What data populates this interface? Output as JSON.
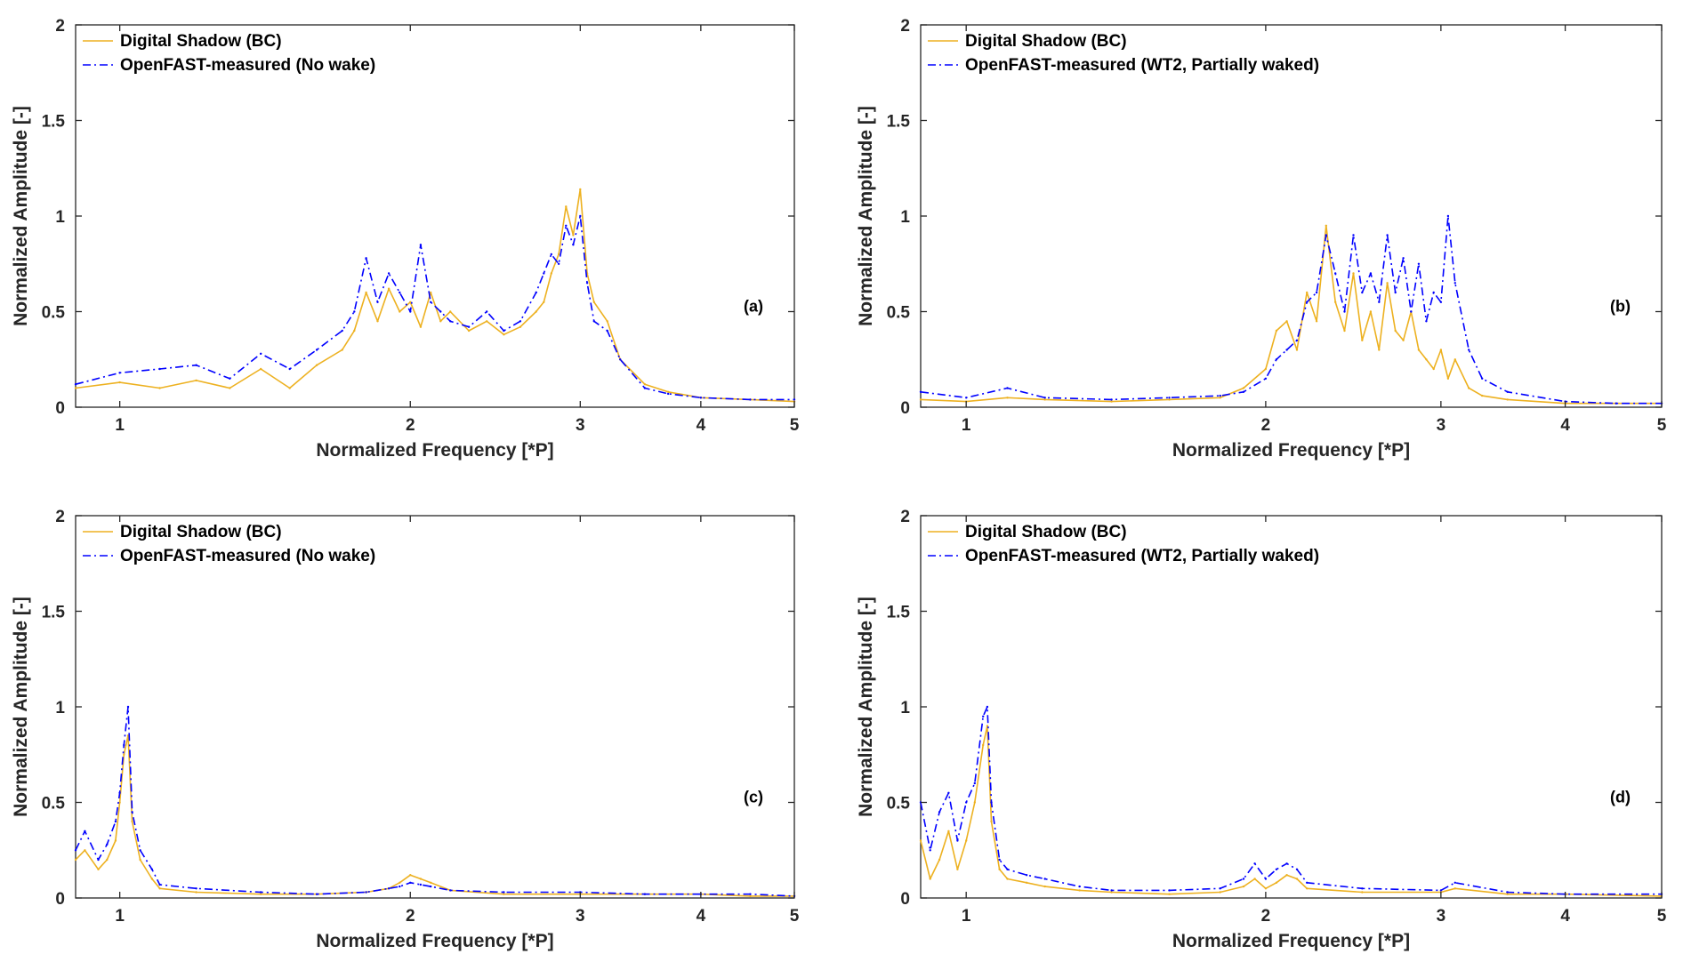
{
  "figure": {
    "colors": {
      "shadow": "#EDB120",
      "measured": "#0000FF",
      "axis": "#262626",
      "background": "#FFFFFF"
    }
  },
  "chart_data": [
    {
      "id": "a",
      "type": "line",
      "panel_label": "(a)",
      "xlabel": "Normalized Frequency [*P]",
      "ylabel": "Normalized Amplitude [-]",
      "xlim": [
        0.9,
        5
      ],
      "ylim": [
        0,
        2
      ],
      "xscale": "log",
      "xticks": [
        1,
        2,
        3,
        4,
        5
      ],
      "xticklabels": [
        "1",
        "2",
        "3",
        "4",
        "5"
      ],
      "yticks": [
        0,
        0.5,
        1,
        1.5,
        2
      ],
      "yticklabels": [
        "0",
        "0.5",
        "1",
        "1.5",
        "2"
      ],
      "legend_location": "top-left",
      "series": [
        {
          "name": "Digital Shadow (BC)",
          "style": "solid",
          "color": "#EDB120",
          "x": [
            0.9,
            1.0,
            1.1,
            1.2,
            1.3,
            1.4,
            1.5,
            1.6,
            1.7,
            1.75,
            1.8,
            1.85,
            1.9,
            1.95,
            2.0,
            2.05,
            2.1,
            2.15,
            2.2,
            2.3,
            2.4,
            2.5,
            2.6,
            2.7,
            2.75,
            2.8,
            2.85,
            2.9,
            2.95,
            3.0,
            3.05,
            3.1,
            3.2,
            3.3,
            3.5,
            3.7,
            4.0,
            4.5,
            5.0
          ],
          "y": [
            0.1,
            0.13,
            0.1,
            0.14,
            0.1,
            0.2,
            0.1,
            0.22,
            0.3,
            0.4,
            0.6,
            0.45,
            0.62,
            0.5,
            0.55,
            0.42,
            0.6,
            0.45,
            0.5,
            0.4,
            0.45,
            0.38,
            0.42,
            0.5,
            0.55,
            0.7,
            0.8,
            1.05,
            0.9,
            1.14,
            0.7,
            0.55,
            0.45,
            0.25,
            0.12,
            0.08,
            0.05,
            0.04,
            0.03
          ]
        },
        {
          "name": "OpenFAST-measured (No wake)",
          "style": "dashdot",
          "color": "#0000FF",
          "x": [
            0.9,
            1.0,
            1.1,
            1.2,
            1.3,
            1.4,
            1.5,
            1.6,
            1.7,
            1.75,
            1.8,
            1.85,
            1.9,
            1.95,
            2.0,
            2.05,
            2.1,
            2.15,
            2.2,
            2.3,
            2.4,
            2.5,
            2.6,
            2.7,
            2.75,
            2.8,
            2.85,
            2.9,
            2.95,
            3.0,
            3.05,
            3.1,
            3.2,
            3.3,
            3.5,
            3.7,
            4.0,
            4.5,
            5.0
          ],
          "y": [
            0.12,
            0.18,
            0.2,
            0.22,
            0.15,
            0.28,
            0.2,
            0.3,
            0.4,
            0.5,
            0.78,
            0.55,
            0.7,
            0.6,
            0.5,
            0.85,
            0.55,
            0.5,
            0.45,
            0.42,
            0.5,
            0.4,
            0.45,
            0.6,
            0.7,
            0.8,
            0.75,
            0.95,
            0.85,
            1.0,
            0.65,
            0.45,
            0.4,
            0.25,
            0.1,
            0.07,
            0.05,
            0.04,
            0.04
          ]
        }
      ]
    },
    {
      "id": "b",
      "type": "line",
      "panel_label": "(b)",
      "xlabel": "Normalized Frequency [*P]",
      "ylabel": "Normalized Amplitude [-]",
      "xlim": [
        0.9,
        5
      ],
      "ylim": [
        0,
        2
      ],
      "xscale": "log",
      "xticks": [
        1,
        2,
        3,
        4,
        5
      ],
      "xticklabels": [
        "1",
        "2",
        "3",
        "4",
        "5"
      ],
      "yticks": [
        0,
        0.5,
        1,
        1.5,
        2
      ],
      "yticklabels": [
        "0",
        "0.5",
        "1",
        "1.5",
        "2"
      ],
      "legend_location": "top-left",
      "series": [
        {
          "name": "Digital Shadow (BC)",
          "style": "solid",
          "color": "#EDB120",
          "x": [
            0.9,
            1.0,
            1.1,
            1.2,
            1.4,
            1.6,
            1.8,
            1.9,
            2.0,
            2.05,
            2.1,
            2.15,
            2.2,
            2.25,
            2.3,
            2.35,
            2.4,
            2.45,
            2.5,
            2.55,
            2.6,
            2.65,
            2.7,
            2.75,
            2.8,
            2.85,
            2.9,
            2.95,
            3.0,
            3.05,
            3.1,
            3.2,
            3.3,
            3.5,
            4.0,
            4.5,
            5.0
          ],
          "y": [
            0.04,
            0.03,
            0.05,
            0.04,
            0.03,
            0.04,
            0.05,
            0.1,
            0.2,
            0.4,
            0.45,
            0.3,
            0.6,
            0.45,
            0.95,
            0.55,
            0.4,
            0.7,
            0.35,
            0.5,
            0.3,
            0.65,
            0.4,
            0.35,
            0.5,
            0.3,
            0.25,
            0.2,
            0.3,
            0.15,
            0.25,
            0.1,
            0.06,
            0.04,
            0.02,
            0.02,
            0.02
          ]
        },
        {
          "name": "OpenFAST-measured (WT2, Partially waked)",
          "style": "dashdot",
          "color": "#0000FF",
          "x": [
            0.9,
            1.0,
            1.1,
            1.2,
            1.4,
            1.6,
            1.8,
            1.9,
            2.0,
            2.05,
            2.1,
            2.15,
            2.2,
            2.25,
            2.3,
            2.35,
            2.4,
            2.45,
            2.5,
            2.55,
            2.6,
            2.65,
            2.7,
            2.75,
            2.8,
            2.85,
            2.9,
            2.95,
            3.0,
            3.05,
            3.1,
            3.2,
            3.3,
            3.5,
            4.0,
            4.5,
            5.0
          ],
          "y": [
            0.08,
            0.05,
            0.1,
            0.05,
            0.04,
            0.05,
            0.06,
            0.08,
            0.15,
            0.25,
            0.3,
            0.35,
            0.55,
            0.6,
            0.9,
            0.7,
            0.5,
            0.9,
            0.6,
            0.7,
            0.55,
            0.9,
            0.6,
            0.78,
            0.5,
            0.75,
            0.45,
            0.6,
            0.55,
            1.0,
            0.65,
            0.3,
            0.15,
            0.08,
            0.03,
            0.02,
            0.02
          ]
        }
      ]
    },
    {
      "id": "c",
      "type": "line",
      "panel_label": "(c)",
      "xlabel": "Normalized Frequency [*P]",
      "ylabel": "Normalized Amplitude [-]",
      "xlim": [
        0.9,
        5
      ],
      "ylim": [
        0,
        2
      ],
      "xscale": "log",
      "xticks": [
        1,
        2,
        3,
        4,
        5
      ],
      "xticklabels": [
        "1",
        "2",
        "3",
        "4",
        "5"
      ],
      "yticks": [
        0,
        0.5,
        1,
        1.5,
        2
      ],
      "yticklabels": [
        "0",
        "0.5",
        "1",
        "1.5",
        "2"
      ],
      "legend_location": "top-left",
      "series": [
        {
          "name": "Digital Shadow (BC)",
          "style": "solid",
          "color": "#EDB120",
          "x": [
            0.9,
            0.92,
            0.95,
            0.97,
            0.99,
            1.0,
            1.01,
            1.02,
            1.03,
            1.05,
            1.08,
            1.1,
            1.2,
            1.4,
            1.6,
            1.8,
            1.9,
            1.95,
            2.0,
            2.05,
            2.1,
            2.2,
            2.5,
            3.0,
            3.5,
            4.0,
            4.5,
            5.0
          ],
          "y": [
            0.2,
            0.25,
            0.15,
            0.2,
            0.3,
            0.5,
            0.75,
            0.85,
            0.4,
            0.2,
            0.1,
            0.05,
            0.03,
            0.02,
            0.02,
            0.03,
            0.05,
            0.08,
            0.12,
            0.1,
            0.08,
            0.04,
            0.02,
            0.02,
            0.02,
            0.02,
            0.01,
            0.01
          ]
        },
        {
          "name": "OpenFAST-measured (No wake)",
          "style": "dashdot",
          "color": "#0000FF",
          "x": [
            0.9,
            0.92,
            0.95,
            0.97,
            0.99,
            1.0,
            1.01,
            1.02,
            1.03,
            1.05,
            1.08,
            1.1,
            1.2,
            1.4,
            1.6,
            1.8,
            1.9,
            1.95,
            2.0,
            2.05,
            2.1,
            2.2,
            2.5,
            3.0,
            3.5,
            4.0,
            4.5,
            5.0
          ],
          "y": [
            0.25,
            0.35,
            0.2,
            0.28,
            0.4,
            0.55,
            0.8,
            1.0,
            0.45,
            0.25,
            0.15,
            0.07,
            0.05,
            0.03,
            0.02,
            0.03,
            0.05,
            0.06,
            0.08,
            0.07,
            0.06,
            0.04,
            0.03,
            0.03,
            0.02,
            0.02,
            0.02,
            0.01
          ]
        }
      ]
    },
    {
      "id": "d",
      "type": "line",
      "panel_label": "(d)",
      "xlabel": "Normalized Frequency [*P]",
      "ylabel": "Normalized Amplitude [-]",
      "xlim": [
        0.9,
        5
      ],
      "ylim": [
        0,
        2
      ],
      "xscale": "log",
      "xticks": [
        1,
        2,
        3,
        4,
        5
      ],
      "xticklabels": [
        "1",
        "2",
        "3",
        "4",
        "5"
      ],
      "yticks": [
        0,
        0.5,
        1,
        1.5,
        2
      ],
      "yticklabels": [
        "0",
        "0.5",
        "1",
        "1.5",
        "2"
      ],
      "legend_location": "top-left",
      "series": [
        {
          "name": "Digital Shadow (BC)",
          "style": "solid",
          "color": "#EDB120",
          "x": [
            0.9,
            0.92,
            0.94,
            0.96,
            0.98,
            1.0,
            1.02,
            1.04,
            1.05,
            1.06,
            1.08,
            1.1,
            1.15,
            1.2,
            1.3,
            1.4,
            1.6,
            1.8,
            1.9,
            1.95,
            2.0,
            2.05,
            2.1,
            2.15,
            2.2,
            2.5,
            3.0,
            3.1,
            3.5,
            4.0,
            5.0
          ],
          "y": [
            0.3,
            0.1,
            0.2,
            0.35,
            0.15,
            0.3,
            0.5,
            0.8,
            0.9,
            0.4,
            0.15,
            0.1,
            0.08,
            0.06,
            0.04,
            0.03,
            0.02,
            0.03,
            0.06,
            0.1,
            0.05,
            0.08,
            0.12,
            0.1,
            0.05,
            0.03,
            0.03,
            0.05,
            0.02,
            0.02,
            0.01
          ]
        },
        {
          "name": "OpenFAST-measured (WT2, Partially waked)",
          "style": "dashdot",
          "color": "#0000FF",
          "x": [
            0.9,
            0.92,
            0.94,
            0.96,
            0.98,
            1.0,
            1.02,
            1.04,
            1.05,
            1.06,
            1.08,
            1.1,
            1.15,
            1.2,
            1.3,
            1.4,
            1.6,
            1.8,
            1.9,
            1.95,
            2.0,
            2.05,
            2.1,
            2.15,
            2.2,
            2.5,
            3.0,
            3.1,
            3.5,
            4.0,
            5.0
          ],
          "y": [
            0.5,
            0.25,
            0.45,
            0.55,
            0.3,
            0.5,
            0.6,
            0.95,
            1.0,
            0.5,
            0.2,
            0.15,
            0.12,
            0.1,
            0.06,
            0.04,
            0.04,
            0.05,
            0.1,
            0.18,
            0.1,
            0.15,
            0.18,
            0.15,
            0.08,
            0.05,
            0.04,
            0.08,
            0.03,
            0.02,
            0.02
          ]
        }
      ]
    }
  ]
}
